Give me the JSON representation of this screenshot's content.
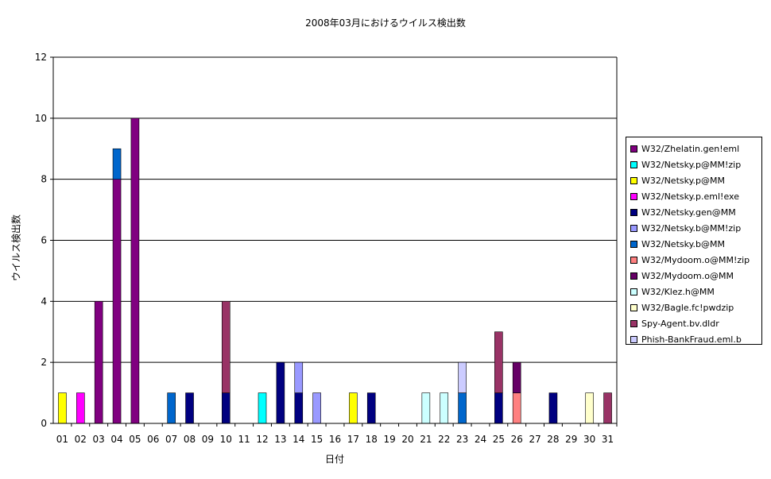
{
  "chart_data": {
    "type": "bar",
    "stacked": true,
    "title": "2008年03月におけるウイルス検出数",
    "xlabel": "日付",
    "ylabel": "ウイルス検出数",
    "ylim": [
      0,
      12
    ],
    "yticks": [
      "0",
      "2",
      "4",
      "6",
      "8",
      "10",
      "12"
    ],
    "grid": true,
    "legend_position": "right",
    "categories": [
      "01",
      "02",
      "03",
      "04",
      "05",
      "06",
      "07",
      "08",
      "09",
      "10",
      "11",
      "12",
      "13",
      "14",
      "15",
      "16",
      "17",
      "18",
      "19",
      "20",
      "21",
      "22",
      "23",
      "24",
      "25",
      "26",
      "27",
      "28",
      "29",
      "30",
      "31"
    ],
    "series": [
      {
        "name": "W32/Zhelatin.gen!eml",
        "color": "#800080",
        "values": [
          0,
          0,
          4,
          8,
          10,
          0,
          0,
          0,
          0,
          0,
          0,
          0,
          0,
          0,
          0,
          0,
          0,
          0,
          0,
          0,
          0,
          0,
          0,
          0,
          0,
          0,
          0,
          0,
          0,
          0,
          0
        ]
      },
      {
        "name": "W32/Netsky.p@MM!zip",
        "color": "#00ffff",
        "values": [
          0,
          0,
          0,
          0,
          0,
          0,
          0,
          0,
          0,
          0,
          0,
          1,
          0,
          0,
          0,
          0,
          0,
          0,
          0,
          0,
          0,
          0,
          0,
          0,
          0,
          0,
          0,
          0,
          0,
          0,
          0
        ]
      },
      {
        "name": "W32/Netsky.p@MM",
        "color": "#ffff00",
        "values": [
          1,
          0,
          0,
          0,
          0,
          0,
          0,
          0,
          0,
          0,
          0,
          0,
          0,
          0,
          0,
          0,
          1,
          0,
          0,
          0,
          0,
          0,
          0,
          0,
          0,
          0,
          0,
          0,
          0,
          0,
          0
        ]
      },
      {
        "name": "W32/Netsky.p.eml!exe",
        "color": "#ff00ff",
        "values": [
          0,
          1,
          0,
          0,
          0,
          0,
          0,
          0,
          0,
          0,
          0,
          0,
          0,
          0,
          0,
          0,
          0,
          0,
          0,
          0,
          0,
          0,
          0,
          0,
          0,
          0,
          0,
          0,
          0,
          0,
          0
        ]
      },
      {
        "name": "W32/Netsky.gen@MM",
        "color": "#000080",
        "values": [
          0,
          0,
          0,
          0,
          0,
          0,
          0,
          1,
          0,
          1,
          0,
          0,
          2,
          1,
          0,
          0,
          0,
          1,
          0,
          0,
          0,
          0,
          0,
          0,
          1,
          0,
          0,
          1,
          0,
          0,
          0
        ]
      },
      {
        "name": "W32/Netsky.b@MM!zip",
        "color": "#9999ff",
        "values": [
          0,
          0,
          0,
          0,
          0,
          0,
          0,
          0,
          0,
          0,
          0,
          0,
          0,
          1,
          1,
          0,
          0,
          0,
          0,
          0,
          0,
          0,
          0,
          0,
          0,
          0,
          0,
          0,
          0,
          0,
          0
        ]
      },
      {
        "name": "W32/Netsky.b@MM",
        "color": "#0066cc",
        "values": [
          0,
          0,
          0,
          1,
          0,
          0,
          1,
          0,
          0,
          0,
          0,
          0,
          0,
          0,
          0,
          0,
          0,
          0,
          0,
          0,
          0,
          0,
          1,
          0,
          0,
          0,
          0,
          0,
          0,
          0,
          0
        ]
      },
      {
        "name": "W32/Mydoom.o@MM!zip",
        "color": "#ff8080",
        "values": [
          0,
          0,
          0,
          0,
          0,
          0,
          0,
          0,
          0,
          0,
          0,
          0,
          0,
          0,
          0,
          0,
          0,
          0,
          0,
          0,
          0,
          0,
          0,
          0,
          0,
          1,
          0,
          0,
          0,
          0,
          0
        ]
      },
      {
        "name": "W32/Mydoom.o@MM",
        "color": "#660066",
        "values": [
          0,
          0,
          0,
          0,
          0,
          0,
          0,
          0,
          0,
          0,
          0,
          0,
          0,
          0,
          0,
          0,
          0,
          0,
          0,
          0,
          0,
          0,
          0,
          0,
          0,
          1,
          0,
          0,
          0,
          0,
          0
        ]
      },
      {
        "name": "W32/Klez.h@MM",
        "color": "#ccffff",
        "values": [
          0,
          0,
          0,
          0,
          0,
          0,
          0,
          0,
          0,
          0,
          0,
          0,
          0,
          0,
          0,
          0,
          0,
          0,
          0,
          0,
          1,
          1,
          0,
          0,
          0,
          0,
          0,
          0,
          0,
          0,
          0
        ]
      },
      {
        "name": "W32/Bagle.fc!pwdzip",
        "color": "#ffffcc",
        "values": [
          0,
          0,
          0,
          0,
          0,
          0,
          0,
          0,
          0,
          0,
          0,
          0,
          0,
          0,
          0,
          0,
          0,
          0,
          0,
          0,
          0,
          0,
          0,
          0,
          0,
          0,
          0,
          0,
          0,
          1,
          0
        ]
      },
      {
        "name": "Spy-Agent.bv.dldr",
        "color": "#993366",
        "values": [
          0,
          0,
          0,
          0,
          0,
          0,
          0,
          0,
          0,
          3,
          0,
          0,
          0,
          0,
          0,
          0,
          0,
          0,
          0,
          0,
          0,
          0,
          0,
          0,
          2,
          0,
          0,
          0,
          0,
          0,
          1
        ]
      },
      {
        "name": "Phish-BankFraud.eml.b",
        "color": "#ccccff",
        "values": [
          0,
          0,
          0,
          0,
          0,
          0,
          0,
          0,
          0,
          0,
          0,
          0,
          0,
          0,
          0,
          0,
          0,
          0,
          0,
          0,
          0,
          0,
          1,
          0,
          0,
          0,
          0,
          0,
          0,
          0,
          0
        ]
      }
    ]
  }
}
